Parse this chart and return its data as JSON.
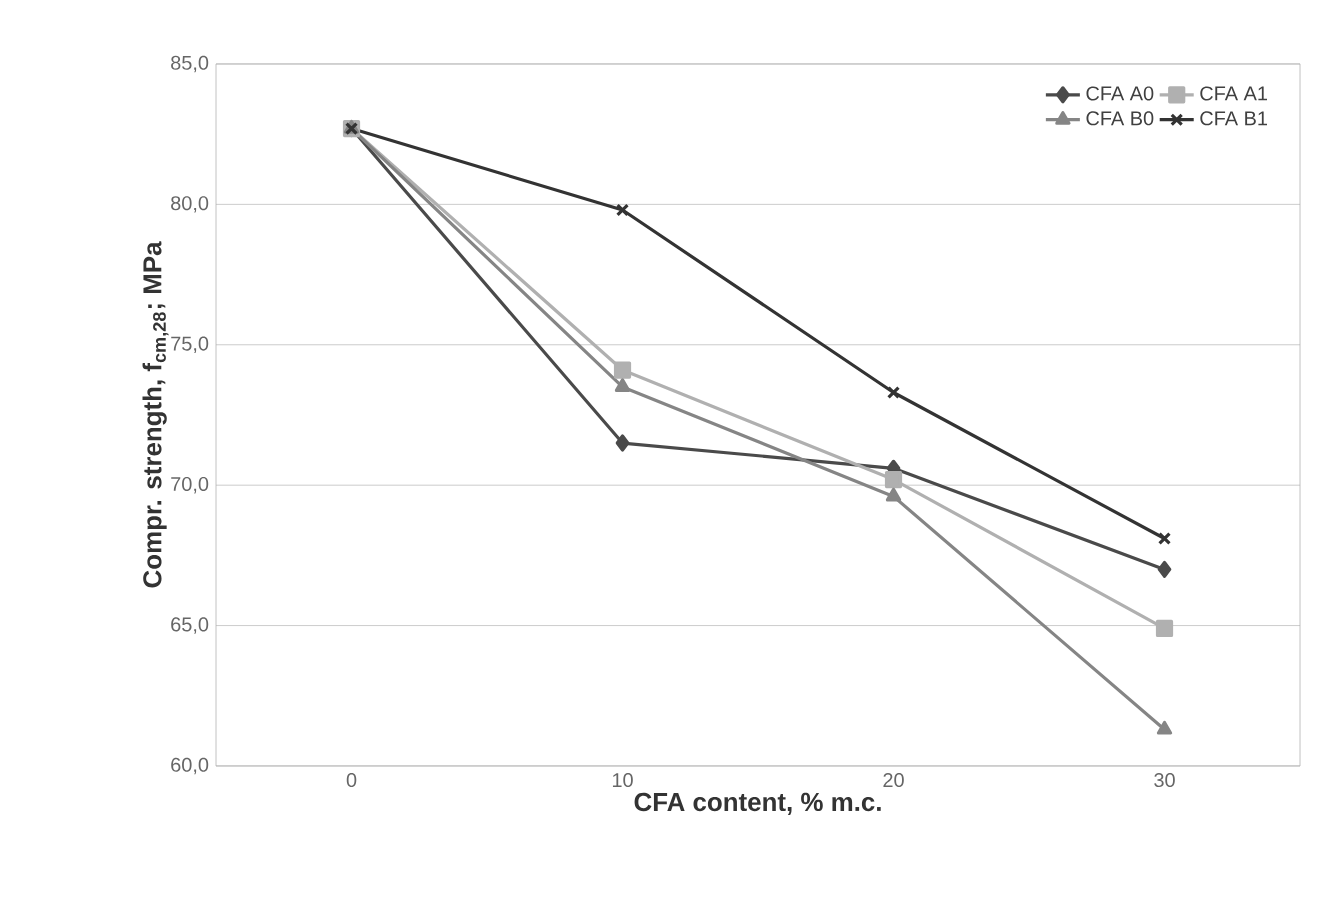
{
  "chart_data": {
    "type": "line",
    "xlabel": "CFA content, % m.c.",
    "ylabel": "Compr. strength, f$_{cm,28}$; MPa",
    "categories": [
      "0",
      "10",
      "20",
      "30"
    ],
    "series": [
      {
        "name": "CFA A0",
        "color": "#4a4a4a",
        "marker": "diamond",
        "values": [
          82.7,
          71.5,
          70.6,
          67.0
        ]
      },
      {
        "name": "CFA A1",
        "color": "#b0b0b0",
        "marker": "square",
        "values": [
          82.7,
          74.1,
          70.2,
          64.9
        ]
      },
      {
        "name": "CFA B0",
        "color": "#858585",
        "marker": "triangle",
        "values": [
          82.7,
          73.5,
          69.6,
          61.3
        ]
      },
      {
        "name": "CFA B1",
        "color": "#333333",
        "marker": "cross",
        "values": [
          82.7,
          79.8,
          73.3,
          68.1
        ]
      }
    ],
    "ylim": [
      60,
      85
    ],
    "yticks": [
      {
        "value": 60,
        "label": "60,0"
      },
      {
        "value": 65,
        "label": "65,0"
      },
      {
        "value": 70,
        "label": "70,0"
      },
      {
        "value": 75,
        "label": "75,0"
      },
      {
        "value": 80,
        "label": "80,0"
      },
      {
        "value": 85,
        "label": "85,0"
      }
    ],
    "grid": "y",
    "legend": "top right",
    "line_style": "solid"
  }
}
